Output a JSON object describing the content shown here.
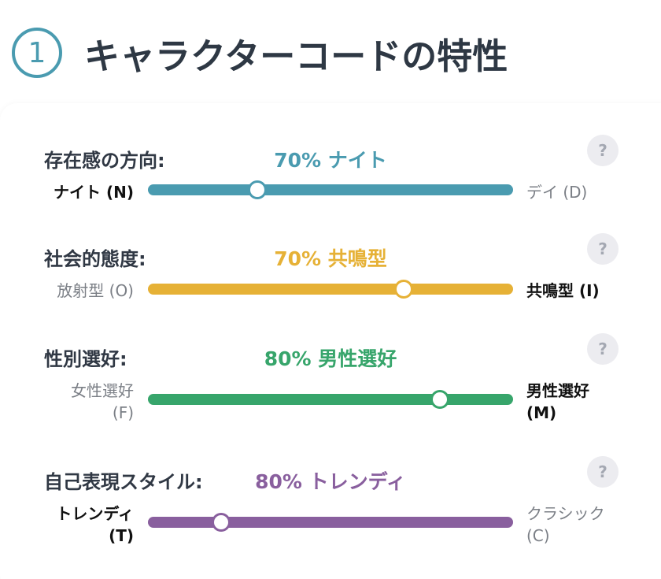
{
  "header": {
    "step_number": "1",
    "title": "キャラクターコードの特性",
    "step_color": "#4a9bb0"
  },
  "traits": [
    {
      "label": "存在感の方向:",
      "result": "70% ナイト",
      "left_label": "ナイト (N)",
      "right_label": "デイ (D)",
      "dominant_side": "left",
      "position": 0.3,
      "color": "#4a9bb0",
      "help_label": "?"
    },
    {
      "label": "社会的態度:",
      "result": "70% 共鳴型",
      "left_label": "放射型 (O)",
      "right_label": "共鳴型 (I)",
      "dominant_side": "right",
      "position": 0.7,
      "color": "#e6b136",
      "help_label": "?"
    },
    {
      "label": "性別選好:",
      "result": "80% 男性選好",
      "left_label": "女性選好\n(F)",
      "right_label": "男性選好\n(M)",
      "dominant_side": "right",
      "position": 0.8,
      "color": "#37a56b",
      "help_label": "?"
    },
    {
      "label": "自己表現スタイル:",
      "result": "80% トレンディ",
      "left_label": "トレンディ\n(T)",
      "right_label": "クラシック\n(C)",
      "dominant_side": "left",
      "position": 0.2,
      "color": "#895f9e",
      "help_label": "?"
    }
  ]
}
